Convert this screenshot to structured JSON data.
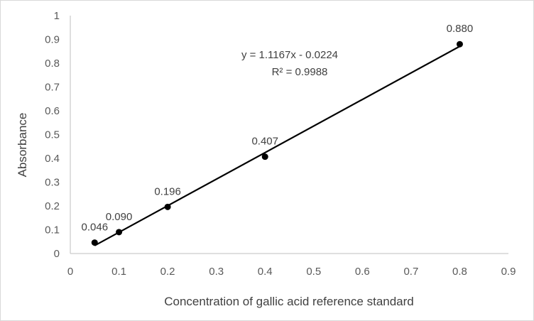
{
  "chart_data": {
    "type": "scatter",
    "title": "",
    "xlabel": "Concentration of gallic acid reference standard",
    "ylabel": "Absorbance",
    "xlim": [
      0,
      0.9
    ],
    "ylim": [
      0,
      1
    ],
    "x_ticks": [
      "0",
      "0.1",
      "0.2",
      "0.3",
      "0.4",
      "0.5",
      "0.6",
      "0.7",
      "0.8",
      "0.9"
    ],
    "y_ticks": [
      "0",
      "0.1",
      "0.2",
      "0.3",
      "0.4",
      "0.5",
      "0.6",
      "0.7",
      "0.8",
      "0.9",
      "1"
    ],
    "grid": false,
    "series": [
      {
        "x": [
          0.05,
          0.1,
          0.2,
          0.4,
          0.8
        ],
        "y": [
          0.046,
          0.09,
          0.196,
          0.407,
          0.88
        ],
        "labels": [
          "0.046",
          "0.090",
          "0.196",
          "0.407",
          "0.880"
        ],
        "color": "#000000"
      }
    ],
    "trendline": {
      "type": "linear",
      "slope": 1.1167,
      "intercept": -0.0224,
      "x_range": [
        0.05,
        0.8
      ],
      "equation": "y = 1.1167x - 0.0224",
      "r_squared": "R² = 0.9988",
      "color": "#000000"
    },
    "axis_color": "#bfbfbf"
  }
}
